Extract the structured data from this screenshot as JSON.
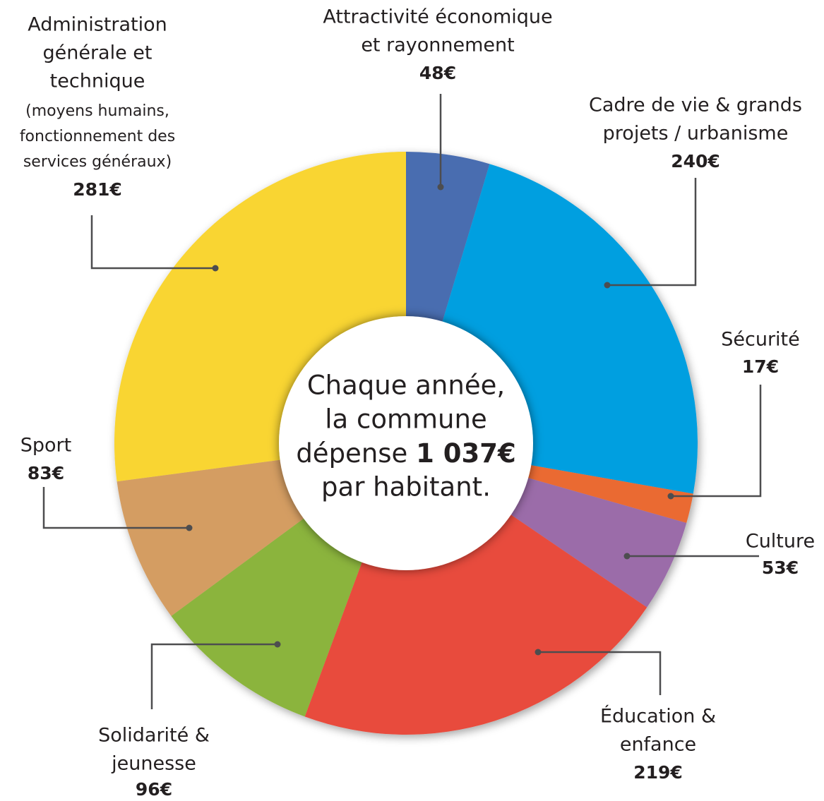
{
  "chart_data": {
    "type": "donut",
    "categories": [
      [
        "Attractivité économique",
        "et rayonnement"
      ],
      [
        "Cadre de vie & grands",
        "projets / urbanisme"
      ],
      [
        "Sécurité"
      ],
      [
        "Culture"
      ],
      [
        "Éducation &",
        "enfance"
      ],
      [
        "Solidarité &",
        "jeunesse"
      ],
      [
        "Sport"
      ],
      [
        "Administration",
        "générale et",
        "technique",
        "(moyens humains,",
        "fonctionnement des",
        "services généraux)"
      ]
    ],
    "values": [
      48,
      240,
      17,
      53,
      219,
      96,
      83,
      281
    ],
    "value_labels": [
      "48€",
      "240€",
      "17€",
      "53€",
      "219€",
      "96€",
      "83€",
      "281€"
    ],
    "colors": [
      "#4a6db0",
      "#009fe0",
      "#ea6a33",
      "#9b6ca9",
      "#e84c3d",
      "#8bb43c",
      "#d49d62",
      "#f9d531"
    ],
    "center_text": [
      "Chaque année,",
      "la commune",
      "dépense ",
      "1 037€",
      "par habitant."
    ]
  }
}
